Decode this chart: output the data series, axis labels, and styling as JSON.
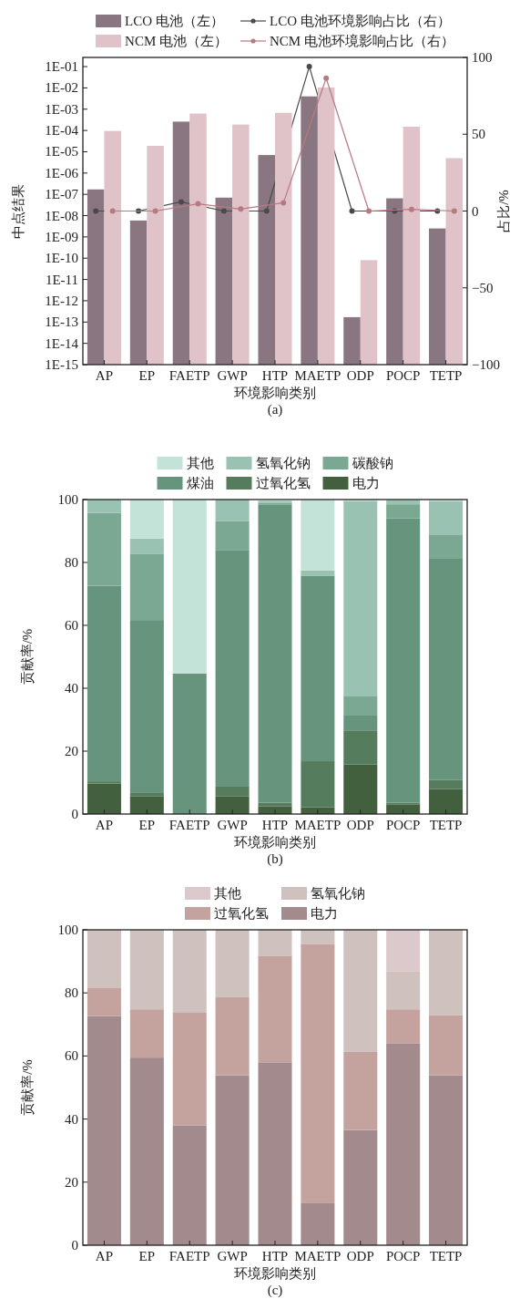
{
  "chart_data": [
    {
      "type": "bar",
      "xlabel": "环境影响类别",
      "ylabel": "中点结果",
      "y2label": "占比/%",
      "annotations": [
        "(a)"
      ],
      "log": "y",
      "legend": "top",
      "marker": "circle",
      "categories": [
        "AP",
        "EP",
        "FAETP",
        "GWP",
        "HTP",
        "MAETP",
        "ODP",
        "POCP",
        "TETP"
      ],
      "ylim": [
        1e-15,
        0.27
      ],
      "yticks": [
        {
          "value": 1e-15,
          "label": "1E-15"
        },
        {
          "value": 1e-14,
          "label": "1E-14"
        },
        {
          "value": 1e-13,
          "label": "1E-13"
        },
        {
          "value": 1e-12,
          "label": "1E-12"
        },
        {
          "value": 1e-11,
          "label": "1E-11"
        },
        {
          "value": 1e-10,
          "label": "1E-10"
        },
        {
          "value": 1e-09,
          "label": "1E-09"
        },
        {
          "value": 1e-08,
          "label": "1E-08"
        },
        {
          "value": 1e-07,
          "label": "1E-07"
        },
        {
          "value": 1e-06,
          "label": "1E-06"
        },
        {
          "value": 1e-05,
          "label": "1E-05"
        },
        {
          "value": 0.0001,
          "label": "1E-04"
        },
        {
          "value": 0.001,
          "label": "1E-03"
        },
        {
          "value": 0.01,
          "label": "1E-02"
        },
        {
          "value": 0.1,
          "label": "1E-01"
        }
      ],
      "y2lim": [
        -100,
        100
      ],
      "y2ticks": [
        {
          "value": -100,
          "label": "−100"
        },
        {
          "value": -50,
          "label": "−50"
        },
        0,
        50,
        100
      ],
      "series": [
        {
          "name": "LCO 电池（左）",
          "type": "bar",
          "color": "#8a7680",
          "values": [
            1.7e-07,
            5.9e-09,
            0.00026,
            7e-08,
            7e-06,
            0.004,
            1.7e-13,
            6.5e-08,
            2.5e-09
          ]
        },
        {
          "name": "LCO 电池环境影响占比（右）",
          "type": "line",
          "axis": "y2",
          "color": "#4a4a4a",
          "values": [
            0,
            0,
            6,
            0,
            0,
            94,
            0,
            0,
            0
          ]
        },
        {
          "name": "NCM 电池（左）",
          "type": "bar",
          "color": "#e0c3c8",
          "values": [
            9.5e-05,
            1.9e-05,
            0.00062,
            0.00019,
            0.00068,
            0.0105,
            8.1e-11,
            0.00015,
            5e-06
          ]
        },
        {
          "name": "NCM 电池环境影响占比（右）",
          "type": "line",
          "axis": "y2",
          "color": "#b87a82",
          "values": [
            0,
            0,
            4.7,
            1.3,
            5.4,
            86.5,
            0,
            1.1,
            0
          ]
        }
      ]
    },
    {
      "type": "bar",
      "stacked": true,
      "xlabel": "环境影响类别",
      "ylabel": "贡献率/%",
      "annotations": [
        "(b)"
      ],
      "legend": "top",
      "categories": [
        "AP",
        "EP",
        "FAETP",
        "GWP",
        "HTP",
        "MAETP",
        "ODP",
        "POCP",
        "TETP"
      ],
      "ylim": [
        0,
        100
      ],
      "yticks": [
        0,
        20,
        40,
        60,
        80,
        100
      ],
      "series": [
        {
          "name": "电力",
          "color": "#42603e",
          "values": [
            9.7,
            5.7,
            0,
            5.7,
            2.5,
            2.1,
            15.8,
            3.1,
            8.0
          ]
        },
        {
          "name": "过氧化氢",
          "color": "#557c5c",
          "values": [
            0.7,
            1.2,
            0,
            3.0,
            1.1,
            14.7,
            10.8,
            0.5,
            2.9
          ]
        },
        {
          "name": "煤油",
          "color": "#67947c",
          "values": [
            62.2,
            54.8,
            44.7,
            75.1,
            94.7,
            59.0,
            4.7,
            90.4,
            70.5
          ]
        },
        {
          "name": "碳酸钠",
          "color": "#7ba893",
          "values": [
            23.2,
            21.1,
            0,
            9.4,
            0.6,
            0,
            6.1,
            4.5,
            7.3
          ]
        },
        {
          "name": "氢氧化钠",
          "color": "#9ac2b2",
          "values": [
            4.2,
            4.8,
            0,
            6.8,
            0.7,
            1.7,
            62.1,
            1.4,
            10.8
          ]
        },
        {
          "name": "其他",
          "color": "#c3e2d8",
          "values": [
            0,
            12.4,
            55.3,
            0,
            null,
            22.5,
            0.5,
            0,
            0.5
          ]
        }
      ]
    },
    {
      "type": "bar",
      "stacked": true,
      "xlabel": "环境影响类别",
      "ylabel": "贡献率/%",
      "annotations": [
        "(c)"
      ],
      "legend": "top",
      "categories": [
        "AP",
        "EP",
        "FAETP",
        "GWP",
        "HTP",
        "MAETP",
        "ODP",
        "POCP",
        "TETP"
      ],
      "ylim": [
        0,
        100
      ],
      "yticks": [
        0,
        20,
        40,
        60,
        80,
        100
      ],
      "series": [
        {
          "name": "电力",
          "color": "#a38b8d",
          "values": [
            72.7,
            59.5,
            38.0,
            53.9,
            58.0,
            13.5,
            36.5,
            63.9,
            53.9
          ]
        },
        {
          "name": "过氧化氢",
          "color": "#c4a39f",
          "values": [
            8.8,
            15.3,
            35.9,
            24.7,
            33.8,
            81.9,
            24.8,
            10.9,
            19.1
          ]
        },
        {
          "name": "氢氧化钠",
          "color": "#cfc2be",
          "values": [
            18.5,
            25.2,
            26.1,
            21.4,
            8.2,
            4.6,
            38.7,
            12.1,
            27.0
          ]
        },
        {
          "name": "其他",
          "color": "#dcc9cb",
          "values": [
            0,
            0,
            0,
            0,
            0,
            0,
            0,
            13.1,
            0
          ]
        }
      ]
    }
  ]
}
